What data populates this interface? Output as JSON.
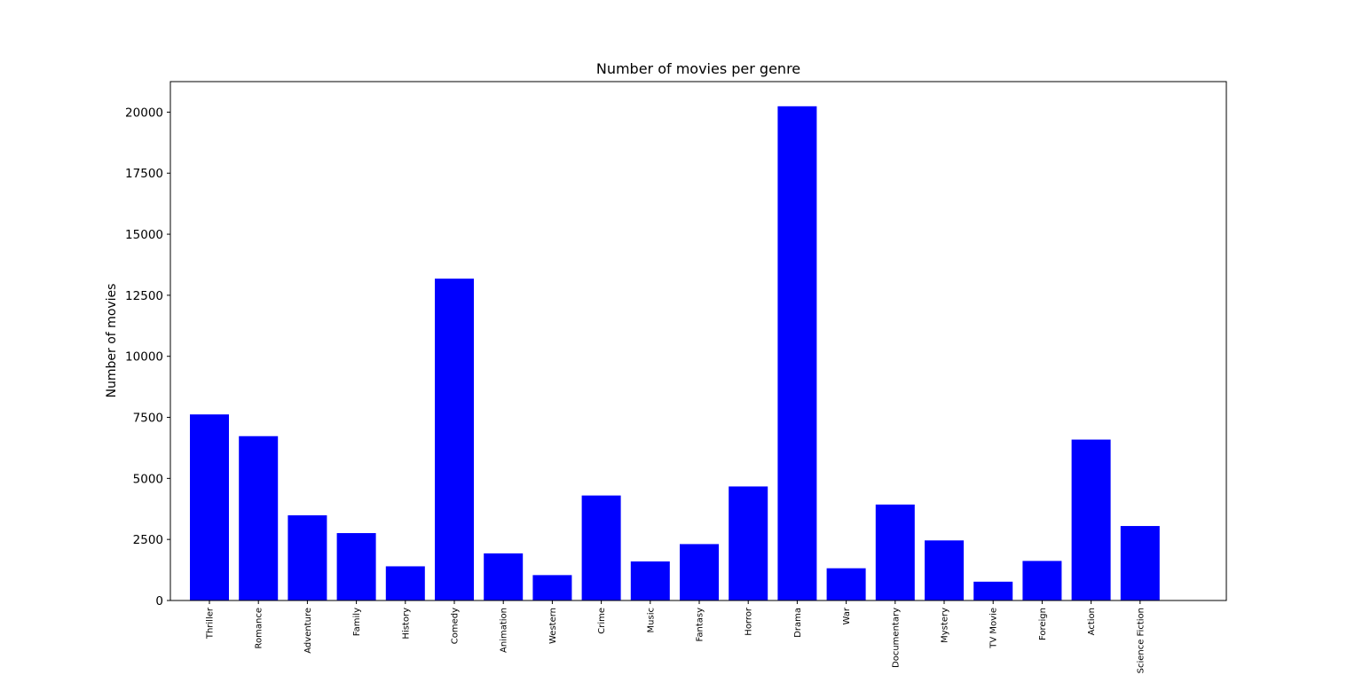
{
  "chart_data": {
    "type": "bar",
    "title": "Number of movies per genre",
    "xlabel": "",
    "ylabel": "Number of movies",
    "categories": [
      "Thriller",
      "Romance",
      "Adventure",
      "Family",
      "History",
      "Comedy",
      "Animation",
      "Western",
      "Crime",
      "Music",
      "Fantasy",
      "Horror",
      "Drama",
      "War",
      "Documentary",
      "Mystery",
      "TV Movie",
      "Foreign",
      "Action",
      "Science Fiction"
    ],
    "values": [
      7620,
      6730,
      3490,
      2760,
      1400,
      13180,
      1930,
      1040,
      4300,
      1600,
      2310,
      4670,
      20240,
      1320,
      3930,
      2460,
      770,
      1620,
      6590,
      3050
    ],
    "yticks": [
      0,
      2500,
      5000,
      7500,
      10000,
      12500,
      15000,
      17500,
      20000
    ],
    "ylim": [
      0,
      21250
    ],
    "bar_color": "#0000ff",
    "grid": false,
    "legend": "none"
  }
}
